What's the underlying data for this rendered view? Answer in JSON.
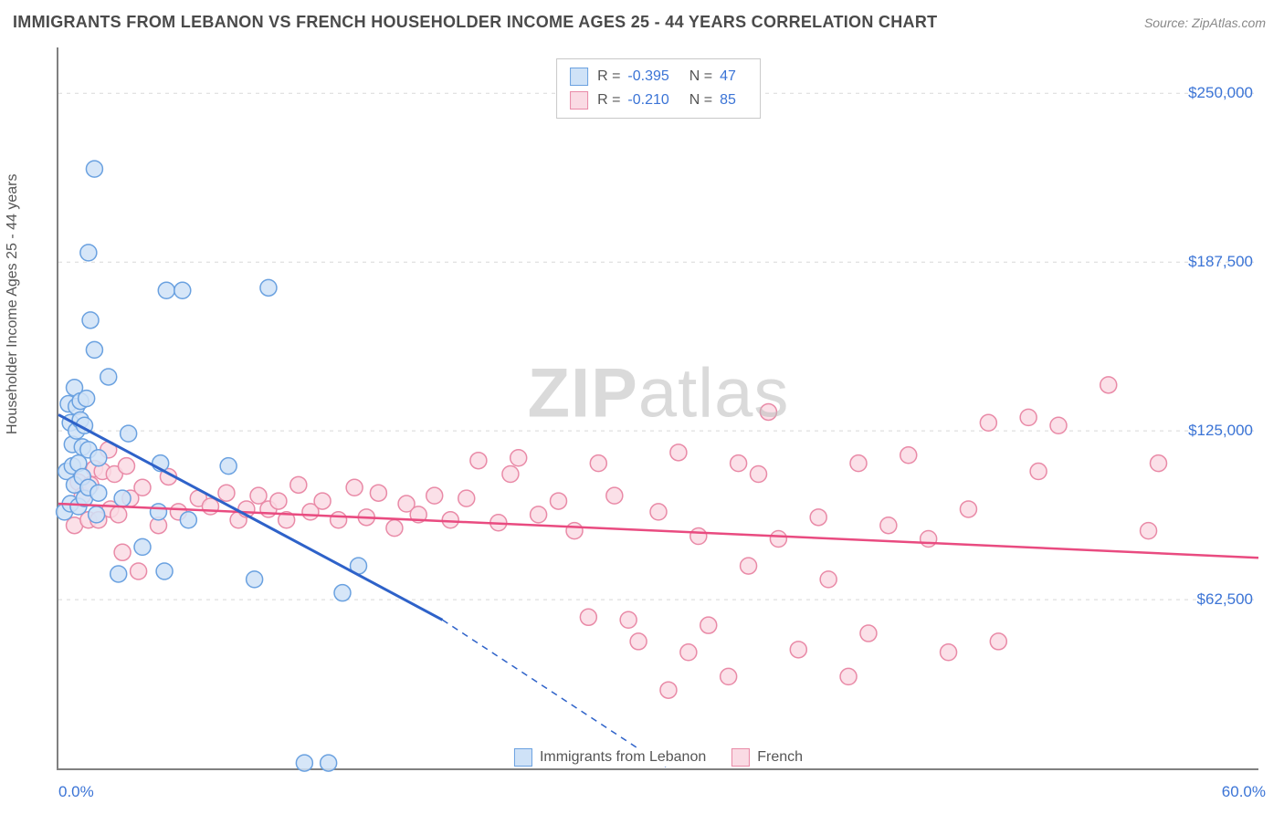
{
  "header": {
    "title": "IMMIGRANTS FROM LEBANON VS FRENCH HOUSEHOLDER INCOME AGES 25 - 44 YEARS CORRELATION CHART",
    "source_label": "Source: ZipAtlas.com"
  },
  "watermark": {
    "bold": "ZIP",
    "rest": "atlas"
  },
  "chart": {
    "type": "scatter-with-trend",
    "y_label": "Householder Income Ages 25 - 44 years",
    "background_color": "#ffffff",
    "grid_color": "#d8d8d8",
    "axis_color": "#808080",
    "x": {
      "min": 0.0,
      "max": 60.0,
      "min_label": "0.0%",
      "max_label": "60.0%"
    },
    "y": {
      "min": 0,
      "max": 267000,
      "ticks": [
        62500,
        125000,
        187500,
        250000
      ],
      "tick_labels": [
        "$62,500",
        "$125,000",
        "$187,500",
        "$250,000"
      ]
    },
    "tick_label_color": "#3b74d6",
    "tick_label_fontsize": 17,
    "series": [
      {
        "id": "lebanon",
        "label": "Immigrants from Lebanon",
        "marker_fill": "#cfe2f7",
        "marker_stroke": "#6aa1e0",
        "marker_radius": 9,
        "marker_opacity": 0.85,
        "line_color": "#2e62c9",
        "line_width": 3,
        "R": "-0.395",
        "N": "47",
        "trend": {
          "solid_from_x": 0.0,
          "solid_from_y": 131000,
          "solid_to_x": 19.2,
          "solid_to_y": 55000,
          "dashed_to_x": 30.5,
          "dashed_to_y": 0
        },
        "points": [
          [
            0.3,
            95000
          ],
          [
            0.4,
            110000
          ],
          [
            0.5,
            135000
          ],
          [
            0.6,
            128000
          ],
          [
            0.6,
            98000
          ],
          [
            0.7,
            120000
          ],
          [
            0.7,
            112000
          ],
          [
            0.8,
            141000
          ],
          [
            0.8,
            105000
          ],
          [
            0.9,
            134000
          ],
          [
            0.9,
            125000
          ],
          [
            1.0,
            97000
          ],
          [
            1.0,
            113000
          ],
          [
            1.1,
            136000
          ],
          [
            1.1,
            129000
          ],
          [
            1.2,
            119000
          ],
          [
            1.2,
            108000
          ],
          [
            1.3,
            100000
          ],
          [
            1.3,
            127000
          ],
          [
            1.4,
            137000
          ],
          [
            1.5,
            118000
          ],
          [
            1.5,
            104000
          ],
          [
            1.6,
            166000
          ],
          [
            1.5,
            191000
          ],
          [
            1.8,
            222000
          ],
          [
            1.8,
            155000
          ],
          [
            1.9,
            94000
          ],
          [
            2.0,
            115000
          ],
          [
            2.0,
            102000
          ],
          [
            2.5,
            145000
          ],
          [
            3.0,
            72000
          ],
          [
            3.2,
            100000
          ],
          [
            3.5,
            124000
          ],
          [
            4.2,
            82000
          ],
          [
            5.0,
            95000
          ],
          [
            5.1,
            113000
          ],
          [
            5.3,
            73000
          ],
          [
            5.4,
            177000
          ],
          [
            6.2,
            177000
          ],
          [
            6.5,
            92000
          ],
          [
            8.5,
            112000
          ],
          [
            9.8,
            70000
          ],
          [
            10.5,
            178000
          ],
          [
            12.3,
            2000
          ],
          [
            13.5,
            2000
          ],
          [
            14.2,
            65000
          ],
          [
            15.0,
            75000
          ]
        ]
      },
      {
        "id": "french",
        "label": "French",
        "marker_fill": "#fadbe4",
        "marker_stroke": "#e98aa7",
        "marker_radius": 9,
        "marker_opacity": 0.85,
        "line_color": "#e94b80",
        "line_width": 2.5,
        "R": "-0.210",
        "N": "85",
        "trend": {
          "solid_from_x": 0.0,
          "solid_from_y": 98000,
          "solid_to_x": 60.0,
          "solid_to_y": 78000
        },
        "points": [
          [
            0.8,
            90000
          ],
          [
            1.0,
            106000
          ],
          [
            1.2,
            101000
          ],
          [
            1.5,
            92000
          ],
          [
            1.6,
            105000
          ],
          [
            1.8,
            111000
          ],
          [
            2.0,
            92000
          ],
          [
            2.2,
            110000
          ],
          [
            2.5,
            118000
          ],
          [
            2.6,
            96000
          ],
          [
            2.8,
            109000
          ],
          [
            3.0,
            94000
          ],
          [
            3.2,
            80000
          ],
          [
            3.4,
            112000
          ],
          [
            3.6,
            100000
          ],
          [
            4.0,
            73000
          ],
          [
            4.2,
            104000
          ],
          [
            5.0,
            90000
          ],
          [
            5.5,
            108000
          ],
          [
            6.0,
            95000
          ],
          [
            7.0,
            100000
          ],
          [
            7.6,
            97000
          ],
          [
            8.4,
            102000
          ],
          [
            9.0,
            92000
          ],
          [
            9.4,
            96000
          ],
          [
            10.0,
            101000
          ],
          [
            10.5,
            96000
          ],
          [
            11.0,
            99000
          ],
          [
            11.4,
            92000
          ],
          [
            12.0,
            105000
          ],
          [
            12.6,
            95000
          ],
          [
            13.2,
            99000
          ],
          [
            14.0,
            92000
          ],
          [
            14.8,
            104000
          ],
          [
            15.4,
            93000
          ],
          [
            16.0,
            102000
          ],
          [
            16.8,
            89000
          ],
          [
            17.4,
            98000
          ],
          [
            18.0,
            94000
          ],
          [
            18.8,
            101000
          ],
          [
            19.6,
            92000
          ],
          [
            20.4,
            100000
          ],
          [
            21.0,
            114000
          ],
          [
            22.0,
            91000
          ],
          [
            22.6,
            109000
          ],
          [
            23.0,
            115000
          ],
          [
            24.0,
            94000
          ],
          [
            25.0,
            99000
          ],
          [
            25.8,
            88000
          ],
          [
            26.5,
            56000
          ],
          [
            27.0,
            113000
          ],
          [
            27.8,
            101000
          ],
          [
            28.5,
            55000
          ],
          [
            29.0,
            47000
          ],
          [
            30.0,
            95000
          ],
          [
            30.5,
            29000
          ],
          [
            31.0,
            117000
          ],
          [
            31.5,
            43000
          ],
          [
            32.0,
            86000
          ],
          [
            32.5,
            53000
          ],
          [
            33.5,
            34000
          ],
          [
            34.0,
            113000
          ],
          [
            34.5,
            75000
          ],
          [
            35.0,
            109000
          ],
          [
            35.5,
            132000
          ],
          [
            36.0,
            85000
          ],
          [
            37.0,
            44000
          ],
          [
            38.0,
            93000
          ],
          [
            38.5,
            70000
          ],
          [
            39.5,
            34000
          ],
          [
            40.0,
            113000
          ],
          [
            40.5,
            50000
          ],
          [
            41.5,
            90000
          ],
          [
            42.5,
            116000
          ],
          [
            43.5,
            85000
          ],
          [
            44.5,
            43000
          ],
          [
            45.5,
            96000
          ],
          [
            46.5,
            128000
          ],
          [
            47.0,
            47000
          ],
          [
            48.5,
            130000
          ],
          [
            49.0,
            110000
          ],
          [
            50.0,
            127000
          ],
          [
            52.5,
            142000
          ],
          [
            54.5,
            88000
          ],
          [
            55.0,
            113000
          ]
        ]
      }
    ]
  }
}
